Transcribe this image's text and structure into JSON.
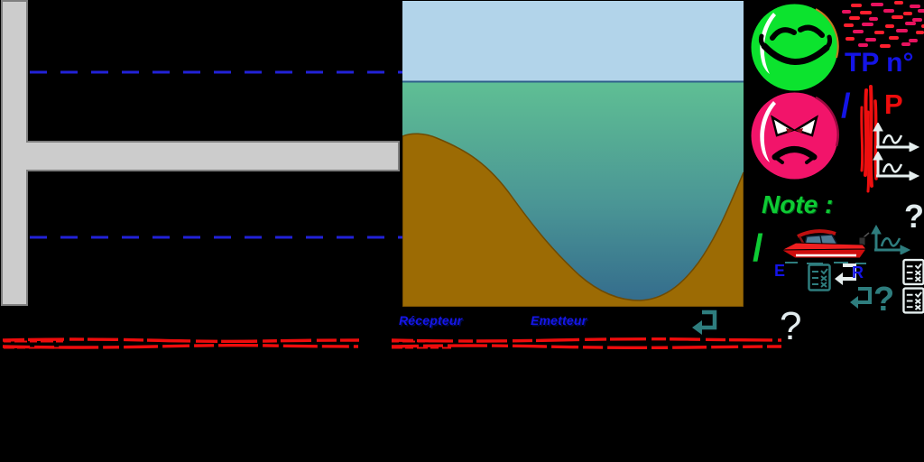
{
  "texts": {
    "tp_label": "TP n°",
    "slash": "/",
    "p_label": "P",
    "note_label": "Note :",
    "emitter_short": "E",
    "receiver_short": "R",
    "receiver_label": "Récepteur",
    "emitter_label": "Emetteur",
    "question_mark": "?"
  },
  "icons": {
    "happy_smiley": "green-happy-face",
    "angry_smiley": "pink-angry-face",
    "return_arrow": "enter-return-arrow",
    "checklist": "grading-checklist",
    "waveform_axes": "oscillogram-axes",
    "boat": "red-speedboat"
  },
  "colors": {
    "background": "#000000",
    "accent_blue": "#1414e6",
    "dash_blue": "#2222d8",
    "red": "#ee0c0c",
    "crimson": "#f2083c",
    "green": "#0ecb34",
    "smiley_green": "#0ce32e",
    "smiley_pink": "#f2146a",
    "teal": "#2e7d7e",
    "icon_white": "#e6efef",
    "gray_bar": "#cccccc",
    "sky": "#b2d4ea",
    "water_top": "#5fbf94",
    "water_bottom": "#336a8c",
    "seabed": "#9c6b04"
  },
  "decor": {
    "red_dash_cloud": {
      "colors": [
        "#ff1f2e",
        "#e8125f"
      ],
      "dashes": [
        [
          10,
          3,
          12,
          0
        ],
        [
          32,
          2,
          14,
          1
        ],
        [
          58,
          0,
          10,
          0
        ],
        [
          75,
          4,
          12,
          1
        ],
        [
          0,
          10,
          10,
          1
        ],
        [
          20,
          11,
          13,
          0
        ],
        [
          46,
          9,
          12,
          1
        ],
        [
          68,
          12,
          10,
          0
        ],
        [
          84,
          9,
          9,
          1
        ],
        [
          8,
          17,
          12,
          0
        ],
        [
          30,
          18,
          10,
          1
        ],
        [
          55,
          16,
          13,
          0
        ],
        [
          78,
          19,
          11,
          1
        ],
        [
          2,
          25,
          11,
          0
        ],
        [
          22,
          24,
          13,
          1
        ],
        [
          48,
          26,
          10,
          0
        ],
        [
          70,
          23,
          12,
          1
        ],
        [
          88,
          26,
          8,
          0
        ],
        [
          12,
          32,
          12,
          1
        ],
        [
          36,
          33,
          11,
          0
        ],
        [
          60,
          31,
          13,
          1
        ],
        [
          82,
          33,
          9,
          0
        ],
        [
          4,
          40,
          10,
          0
        ],
        [
          26,
          41,
          12,
          1
        ],
        [
          52,
          39,
          11,
          0
        ],
        [
          74,
          42,
          10,
          1
        ],
        [
          18,
          47,
          11,
          1
        ],
        [
          42,
          48,
          12,
          0
        ],
        [
          66,
          46,
          10,
          1
        ]
      ]
    }
  }
}
